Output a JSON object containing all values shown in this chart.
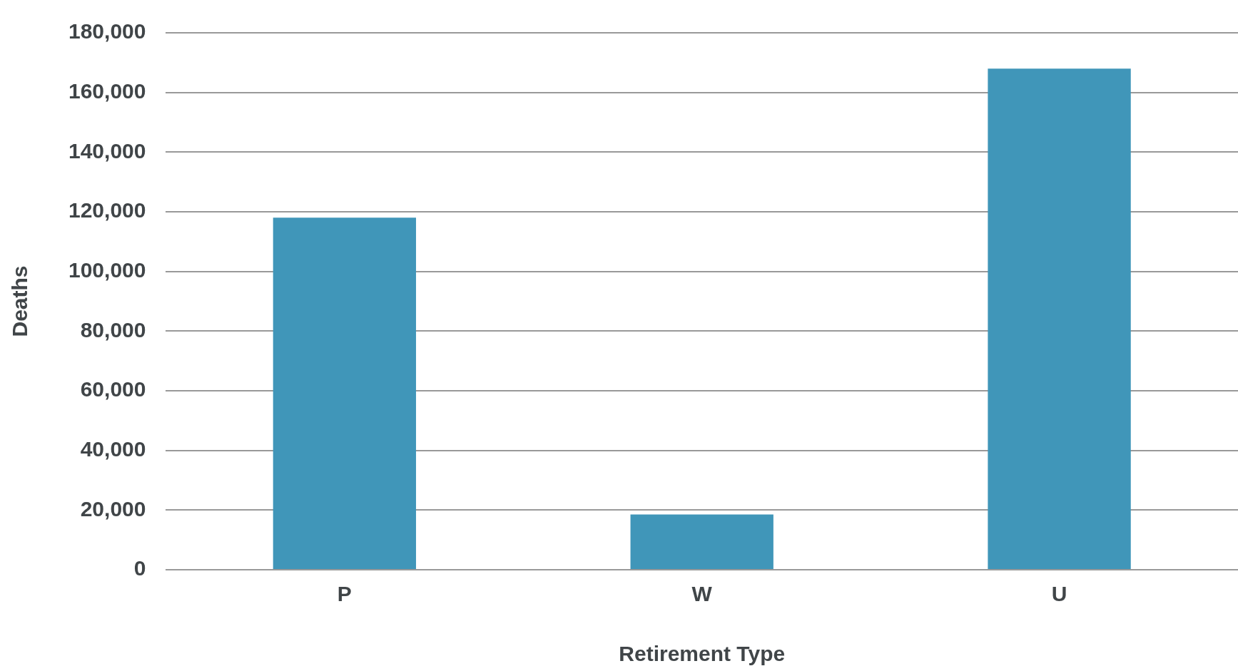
{
  "chart_data": {
    "type": "bar",
    "xlabel": "Retirement Type",
    "ylabel": "Deaths",
    "categories": [
      "P",
      "W",
      "U"
    ],
    "values": [
      118000,
      18500,
      168000
    ],
    "color": "#4096b9",
    "ylim": [
      0,
      180000
    ],
    "yticks": [
      0,
      {
        "value": 20000,
        "label": "20,000"
      },
      {
        "value": 40000,
        "label": "40,000"
      },
      {
        "value": 60000,
        "label": "60,000"
      },
      {
        "value": 80000,
        "label": "80,000"
      },
      {
        "value": 100000,
        "label": "100,000"
      },
      {
        "value": 120000,
        "label": "120,000"
      },
      {
        "value": 140000,
        "label": "140,000"
      },
      {
        "value": 160000,
        "label": "160,000"
      },
      {
        "value": 180000,
        "label": "180,000"
      }
    ],
    "grid": "y",
    "legend": false
  }
}
